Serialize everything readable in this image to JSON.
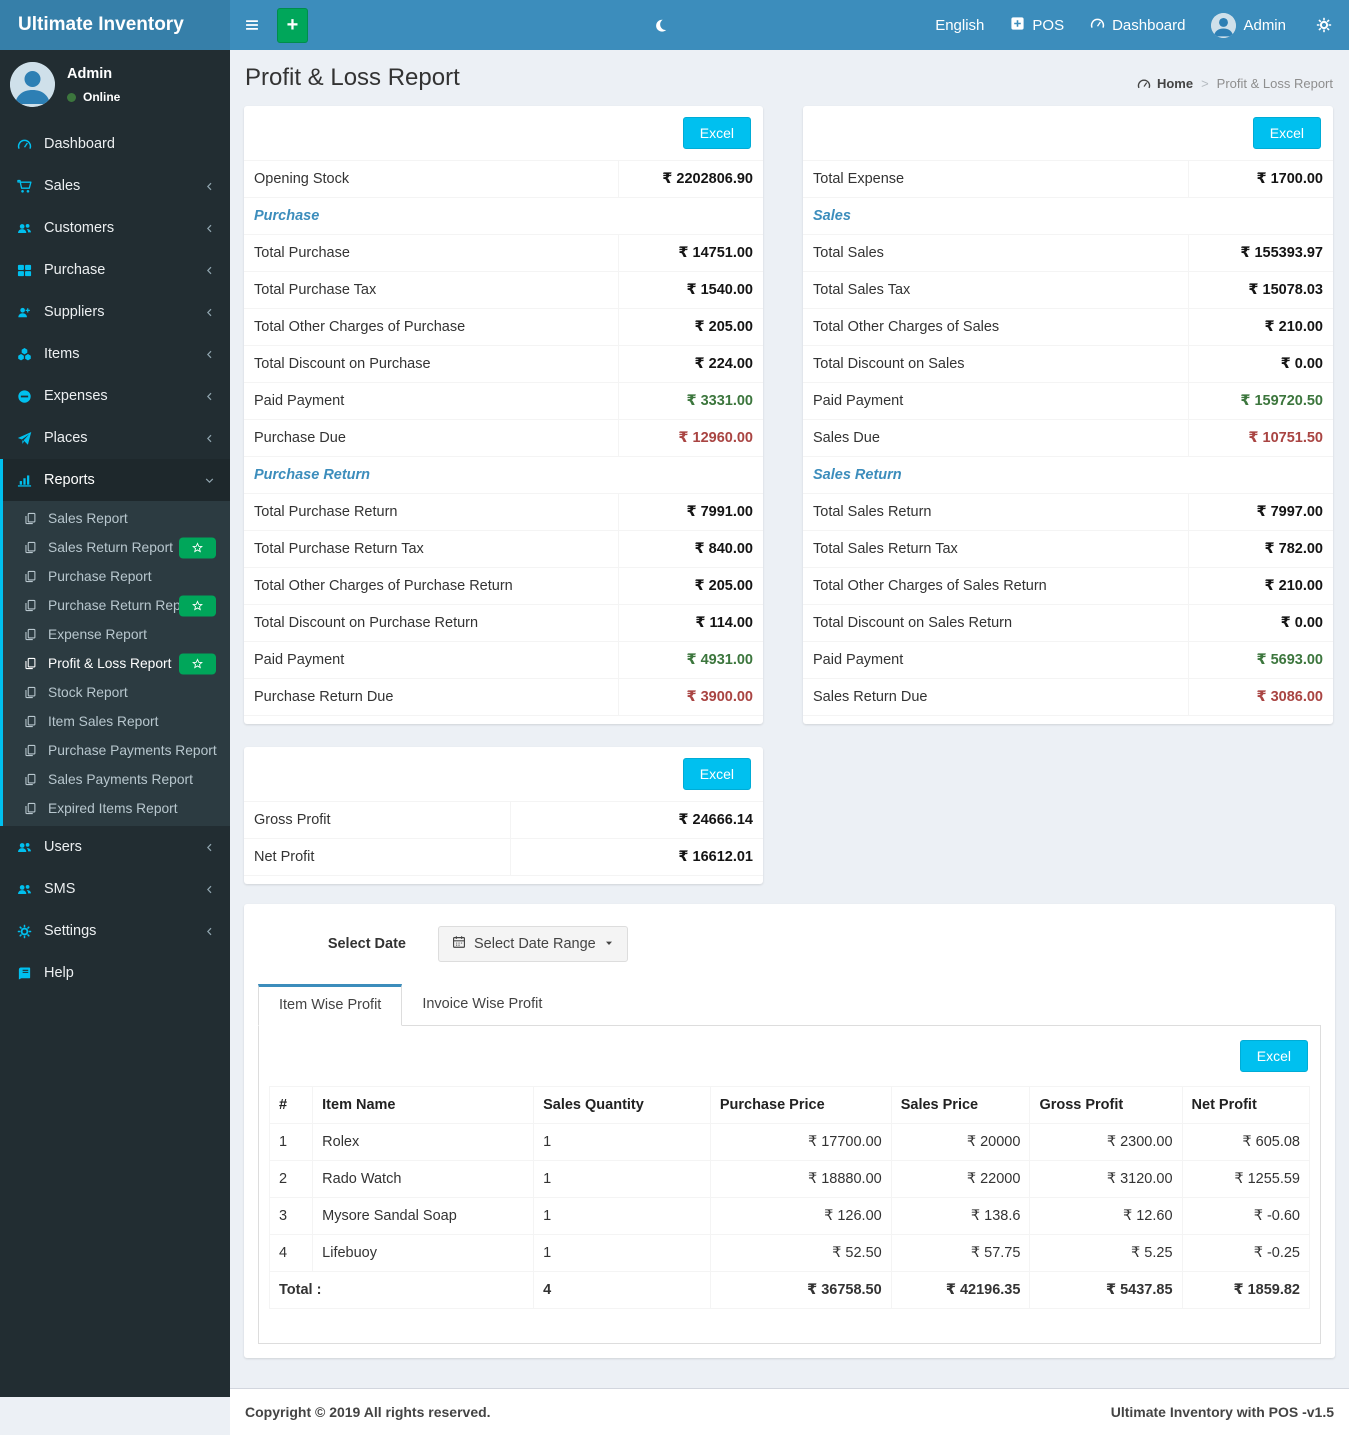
{
  "app": {
    "brand": "Ultimate Inventory",
    "footer_left": "Copyright © 2019 All rights reserved.",
    "footer_right": "Ultimate Inventory with POS -v1.5"
  },
  "colors": {
    "navbar": "#3c8dbc",
    "brand_bg": "#367fa9",
    "sidebar_bg": "#222d32",
    "accent": "#3c8dbc",
    "aqua_button": "#00c0ef",
    "green_button": "#00a65a",
    "value_green": "#3c763d",
    "value_red": "#a94442"
  },
  "navbar": {
    "language": "English",
    "pos": "POS",
    "dashboard": "Dashboard",
    "user": "Admin",
    "icons": [
      "hamburger-icon",
      "plus-icon",
      "moon-icon",
      "plus-square-icon",
      "tachometer-icon",
      "avatar",
      "gears-icon"
    ]
  },
  "sidebar": {
    "user": {
      "name": "Admin",
      "status": "Online"
    },
    "items": [
      {
        "label": "Dashboard",
        "icon": "tachometer"
      },
      {
        "label": "Sales",
        "icon": "cart",
        "chevron": true
      },
      {
        "label": "Customers",
        "icon": "users",
        "chevron": true
      },
      {
        "label": "Purchase",
        "icon": "th-large",
        "chevron": true
      },
      {
        "label": "Suppliers",
        "icon": "user-plus",
        "chevron": true
      },
      {
        "label": "Items",
        "icon": "cubes",
        "chevron": true
      },
      {
        "label": "Expenses",
        "icon": "minus-circle",
        "chevron": true
      },
      {
        "label": "Places",
        "icon": "paper-plane",
        "chevron": true
      },
      {
        "label": "Reports",
        "icon": "bar-chart",
        "active": true,
        "submenu": [
          {
            "label": "Sales Report"
          },
          {
            "label": "Sales Return Report",
            "badge": "star"
          },
          {
            "label": "Purchase Report"
          },
          {
            "label": "Purchase Return Report",
            "badge": "star"
          },
          {
            "label": "Expense Report"
          },
          {
            "label": "Profit & Loss Report",
            "badge": "star",
            "active": true
          },
          {
            "label": "Stock Report"
          },
          {
            "label": "Item Sales Report"
          },
          {
            "label": "Purchase Payments Report"
          },
          {
            "label": "Sales Payments Report"
          },
          {
            "label": "Expired Items Report"
          }
        ]
      },
      {
        "label": "Users",
        "icon": "users",
        "chevron": true
      },
      {
        "label": "SMS",
        "icon": "users",
        "chevron": true
      },
      {
        "label": "Settings",
        "icon": "gears",
        "chevron": true
      },
      {
        "label": "Help",
        "icon": "book"
      }
    ]
  },
  "page": {
    "title": "Profit & Loss Report",
    "breadcrumb_home": "Home",
    "breadcrumb_sep": ">",
    "breadcrumb_current": "Profit & Loss Report"
  },
  "purchase_box": {
    "excel": "Excel",
    "rows": [
      {
        "type": "row",
        "label": "Opening Stock",
        "value": "₹ 2202806.90"
      },
      {
        "type": "section",
        "label": "Purchase"
      },
      {
        "type": "row",
        "label": "Total Purchase",
        "value": "₹ 14751.00"
      },
      {
        "type": "row",
        "label": "Total Purchase Tax",
        "value": "₹ 1540.00"
      },
      {
        "type": "row",
        "label": "Total Other Charges of Purchase",
        "value": "₹ 205.00"
      },
      {
        "type": "row",
        "label": "Total Discount on Purchase",
        "value": "₹ 224.00"
      },
      {
        "type": "row",
        "label": "Paid Payment",
        "value": "₹ 3331.00",
        "color": "green"
      },
      {
        "type": "row",
        "label": "Purchase Due",
        "value": "₹ 12960.00",
        "color": "red"
      },
      {
        "type": "section",
        "label": "Purchase Return"
      },
      {
        "type": "row",
        "label": "Total Purchase Return",
        "value": "₹ 7991.00"
      },
      {
        "type": "row",
        "label": "Total Purchase Return Tax",
        "value": "₹ 840.00"
      },
      {
        "type": "row",
        "label": "Total Other Charges of Purchase Return",
        "value": "₹ 205.00"
      },
      {
        "type": "row",
        "label": "Total Discount on Purchase Return",
        "value": "₹ 114.00"
      },
      {
        "type": "row",
        "label": "Paid Payment",
        "value": "₹ 4931.00",
        "color": "green"
      },
      {
        "type": "row",
        "label": "Purchase Return Due",
        "value": "₹ 3900.00",
        "color": "red"
      }
    ]
  },
  "sales_box": {
    "excel": "Excel",
    "rows": [
      {
        "type": "row",
        "label": "Total Expense",
        "value": "₹ 1700.00"
      },
      {
        "type": "section",
        "label": "Sales"
      },
      {
        "type": "row",
        "label": "Total Sales",
        "value": "₹ 155393.97"
      },
      {
        "type": "row",
        "label": "Total Sales Tax",
        "value": "₹ 15078.03"
      },
      {
        "type": "row",
        "label": "Total Other Charges of Sales",
        "value": "₹ 210.00"
      },
      {
        "type": "row",
        "label": "Total Discount on Sales",
        "value": "₹ 0.00"
      },
      {
        "type": "row",
        "label": "Paid Payment",
        "value": "₹ 159720.50",
        "color": "green"
      },
      {
        "type": "row",
        "label": "Sales Due",
        "value": "₹ 10751.50",
        "color": "red"
      },
      {
        "type": "section",
        "label": "Sales Return"
      },
      {
        "type": "row",
        "label": "Total Sales Return",
        "value": "₹ 7997.00"
      },
      {
        "type": "row",
        "label": "Total Sales Return Tax",
        "value": "₹ 782.00"
      },
      {
        "type": "row",
        "label": "Total Other Charges of Sales Return",
        "value": "₹ 210.00"
      },
      {
        "type": "row",
        "label": "Total Discount on Sales Return",
        "value": "₹ 0.00"
      },
      {
        "type": "row",
        "label": "Paid Payment",
        "value": "₹ 5693.00",
        "color": "green"
      },
      {
        "type": "row",
        "label": "Sales Return Due",
        "value": "₹ 3086.00",
        "color": "red"
      }
    ]
  },
  "profit_box": {
    "excel": "Excel",
    "rows": [
      {
        "type": "row",
        "label": "Gross Profit",
        "value": "₹ 24666.14"
      },
      {
        "type": "row",
        "label": "Net Profit",
        "value": "₹ 16612.01"
      }
    ]
  },
  "date_filter": {
    "label": "Select Date",
    "button": "Select Date Range"
  },
  "tabs": [
    {
      "label": "Item Wise Profit",
      "active": true
    },
    {
      "label": "Invoice Wise Profit"
    }
  ],
  "item_table": {
    "excel": "Excel",
    "headers": [
      "#",
      "Item Name",
      "Sales Quantity",
      "Purchase Price",
      "Sales Price",
      "Gross Profit",
      "Net Profit"
    ],
    "rows": [
      [
        "1",
        "Rolex",
        "1",
        "₹ 17700.00",
        "₹ 20000",
        "₹ 2300.00",
        "₹ 605.08"
      ],
      [
        "2",
        "Rado Watch",
        "1",
        "₹ 18880.00",
        "₹ 22000",
        "₹ 3120.00",
        "₹ 1255.59"
      ],
      [
        "3",
        "Mysore Sandal Soap",
        "1",
        "₹ 126.00",
        "₹ 138.6",
        "₹ 12.60",
        "₹ -0.60"
      ],
      [
        "4",
        "Lifebuoy",
        "1",
        "₹ 52.50",
        "₹ 57.75",
        "₹ 5.25",
        "₹ -0.25"
      ]
    ],
    "total": {
      "label": "Total :",
      "quantity": "4",
      "purchase": "₹ 36758.50",
      "sales": "₹ 42196.35",
      "gross": "₹ 5437.85",
      "net": "₹ 1859.82"
    }
  }
}
